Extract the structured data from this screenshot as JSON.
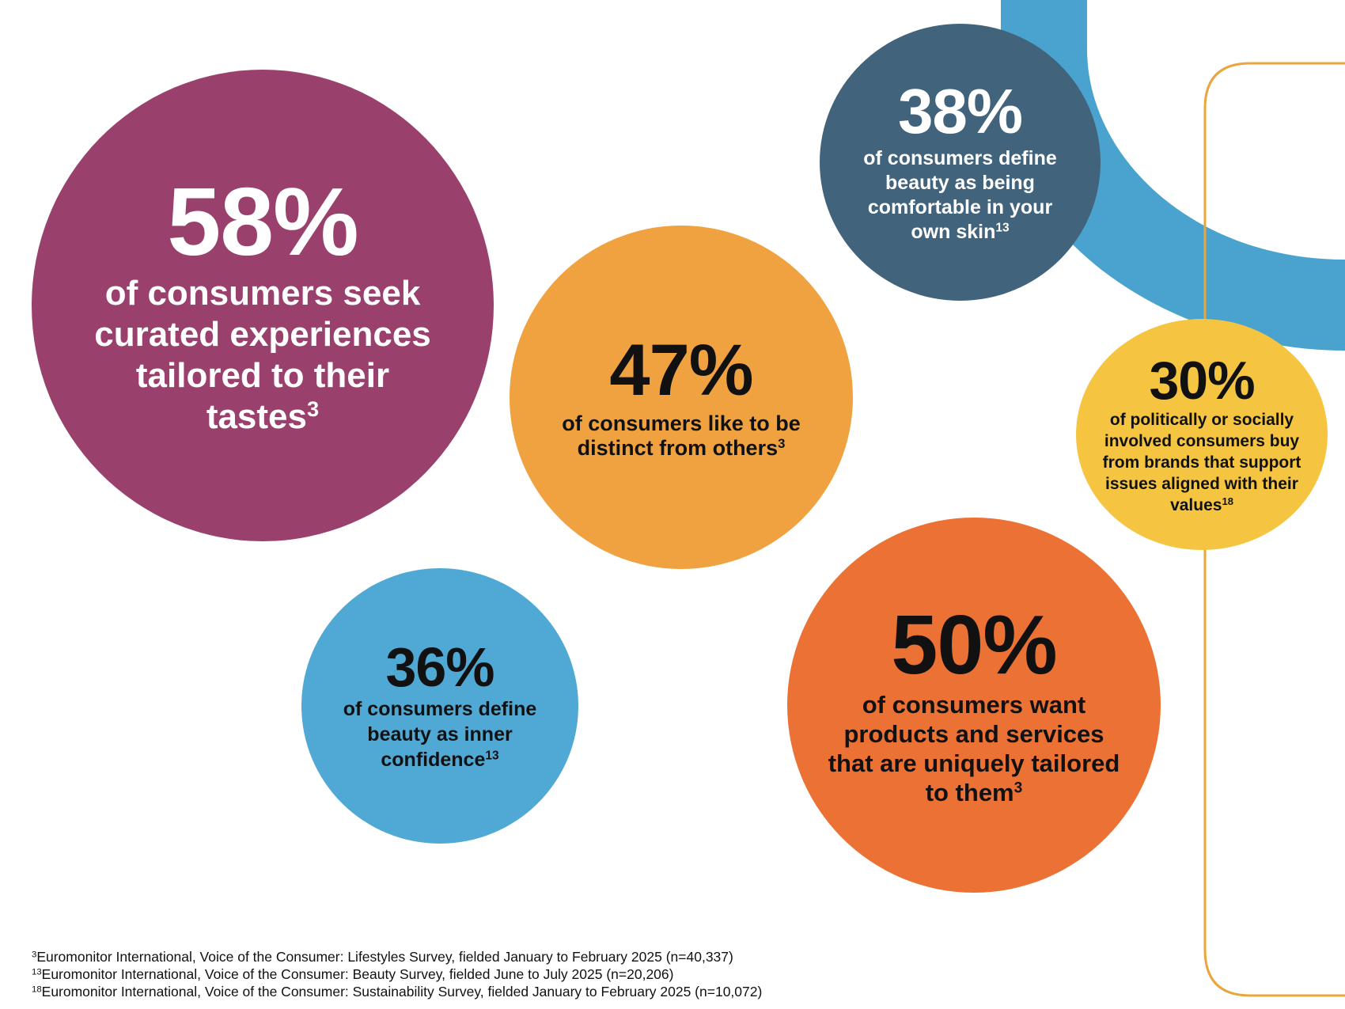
{
  "colors": {
    "plum": "#9a406c",
    "orange": "#f0a240",
    "slate_blue": "#41637c",
    "yellow": "#f5c542",
    "sky_blue": "#4fa9d4",
    "red_orange": "#ec7135",
    "arc_blue": "#4aa3cf",
    "outline_gold": "#e9a63c"
  },
  "stats": [
    {
      "id": "s58",
      "percent": "58%",
      "text": "of consumers seek curated experiences tailored to their tastes",
      "footnote_ref": "3"
    },
    {
      "id": "s47",
      "percent": "47%",
      "text": "of consumers like to be distinct from others",
      "footnote_ref": "3"
    },
    {
      "id": "s38",
      "percent": "38%",
      "text": "of consumers define beauty as being comfortable in your own skin",
      "footnote_ref": "13"
    },
    {
      "id": "s30",
      "percent": "30%",
      "text": "of politically or socially involved consumers buy from brands that support issues aligned with their values",
      "footnote_ref": "18"
    },
    {
      "id": "s36",
      "percent": "36%",
      "text": "of consumers define beauty as inner confidence",
      "footnote_ref": "13"
    },
    {
      "id": "s50",
      "percent": "50%",
      "text": "of consumers want products and services that are uniquely tailored to them",
      "footnote_ref": "3"
    }
  ],
  "footnotes": [
    {
      "ref": "3",
      "text": "Euromonitor International, Voice of the Consumer: Lifestyles Survey, fielded January to February 2025 (n=40,337)"
    },
    {
      "ref": "13",
      "text": "Euromonitor International, Voice of the Consumer: Beauty Survey, fielded June to July 2025 (n=20,206)"
    },
    {
      "ref": "18",
      "text": "Euromonitor International, Voice of the Consumer: Sustainability Survey, fielded January to February 2025 (n=10,072)"
    }
  ]
}
